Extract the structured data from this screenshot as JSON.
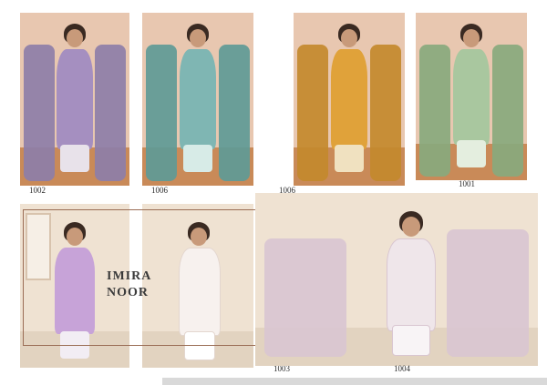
{
  "panels": [
    {
      "code": "1002",
      "outfit": "#a58fc0",
      "pants": "#e8e2ea",
      "dupatta": "#8d7ea8"
    },
    {
      "code": "1006",
      "outfit": "#7fb6b3",
      "pants": "#d7ebe7",
      "dupatta": "#5e9a96"
    },
    {
      "code": "1006",
      "outfit": "#e0a23a",
      "pants": "#f0e1c0",
      "dupatta": "#c3892c"
    },
    {
      "code": "1001",
      "outfit": "#a9c79f",
      "pants": "#e4eedf",
      "dupatta": "#88a97d"
    },
    {
      "code": "",
      "outfit": "#c7a3d8",
      "pants": "#f2edf4",
      "dupatta": "#b18ac6"
    },
    {
      "code": "1003",
      "outfit": "#f7f1ee",
      "pants": "#ffffff",
      "dupatta": "#e8dcd6"
    },
    {
      "code": "1004",
      "outfit": "#efe6ea",
      "pants": "#f8f4f6",
      "dupatta": "#d9c6d1"
    }
  ],
  "brand": {
    "line1": "IMIRA",
    "line2": "NOOR"
  },
  "colors": {
    "wall": "#e8c7b0",
    "floor": "#c98a58",
    "frame": "#9a6d55"
  }
}
